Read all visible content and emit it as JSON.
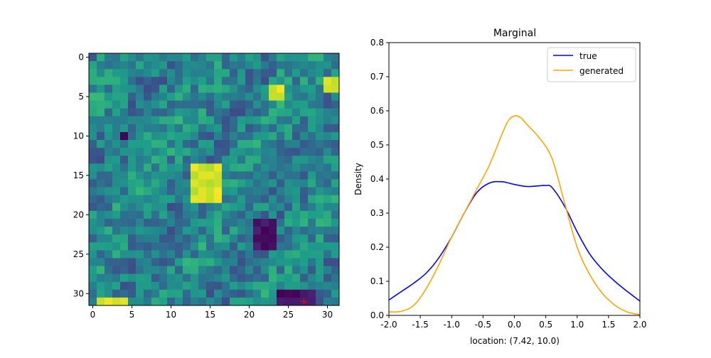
{
  "chart_data": [
    {
      "type": "heatmap",
      "colormap": "viridis",
      "grid_size": [
        32,
        32
      ],
      "xlim": [
        -0.5,
        31.5
      ],
      "ylim": [
        31.5,
        -0.5
      ],
      "xticks": [
        "0",
        "5",
        "10",
        "15",
        "20",
        "25",
        "30"
      ],
      "yticks": [
        "0",
        "5",
        "10",
        "15",
        "20",
        "25",
        "30"
      ],
      "marker": {
        "symbol": "+",
        "color": "#ff0000",
        "x": 27,
        "y": 31
      },
      "bright_regions": [
        {
          "x": [
            13,
            16
          ],
          "y": [
            14,
            18
          ]
        },
        {
          "x": [
            23,
            24
          ],
          "y": [
            4,
            5
          ]
        },
        {
          "x": [
            30,
            31
          ],
          "y": [
            3,
            4
          ]
        },
        {
          "x": [
            1,
            4
          ],
          "y": [
            31,
            31
          ]
        }
      ],
      "dark_regions": [
        {
          "x": [
            21,
            23
          ],
          "y": [
            21,
            24
          ]
        },
        {
          "x": [
            24,
            28
          ],
          "y": [
            30,
            31
          ]
        },
        {
          "x": [
            4,
            4
          ],
          "y": [
            10,
            10
          ]
        }
      ]
    },
    {
      "type": "line",
      "title": "Marginal",
      "xlabel": "location: (7.42, 10.0)",
      "ylabel": "Density",
      "xlim": [
        -2.0,
        2.0
      ],
      "ylim": [
        0.0,
        0.8
      ],
      "xticks": [
        "-2.0",
        "-1.5",
        "-1.0",
        "-0.5",
        "0.0",
        "0.5",
        "1.0",
        "1.5",
        "2.0"
      ],
      "yticks": [
        "0.0",
        "0.1",
        "0.2",
        "0.3",
        "0.4",
        "0.5",
        "0.6",
        "0.7",
        "0.8"
      ],
      "legend_position": "top-right",
      "series": [
        {
          "name": "true",
          "color": "#0000ff",
          "x": [
            -2.0,
            -1.8,
            -1.6,
            -1.4,
            -1.2,
            -1.0,
            -0.8,
            -0.6,
            -0.4,
            -0.2,
            0.0,
            0.2,
            0.4,
            0.5,
            0.6,
            0.8,
            1.0,
            1.2,
            1.4,
            1.6,
            1.8,
            2.0
          ],
          "values": [
            0.045,
            0.07,
            0.095,
            0.125,
            0.17,
            0.23,
            0.3,
            0.36,
            0.388,
            0.392,
            0.384,
            0.378,
            0.38,
            0.381,
            0.375,
            0.32,
            0.245,
            0.18,
            0.135,
            0.1,
            0.07,
            0.042
          ]
        },
        {
          "name": "generated",
          "color": "#ffa500",
          "x": [
            -2.0,
            -1.8,
            -1.6,
            -1.4,
            -1.2,
            -1.0,
            -0.8,
            -0.6,
            -0.4,
            -0.2,
            -0.1,
            0.0,
            0.1,
            0.2,
            0.4,
            0.6,
            0.8,
            1.0,
            1.2,
            1.4,
            1.6,
            1.8,
            2.0
          ],
          "values": [
            0.01,
            0.012,
            0.03,
            0.08,
            0.15,
            0.23,
            0.3,
            0.37,
            0.44,
            0.53,
            0.57,
            0.585,
            0.58,
            0.56,
            0.52,
            0.46,
            0.33,
            0.2,
            0.12,
            0.065,
            0.03,
            0.01,
            0.002
          ]
        }
      ]
    }
  ]
}
